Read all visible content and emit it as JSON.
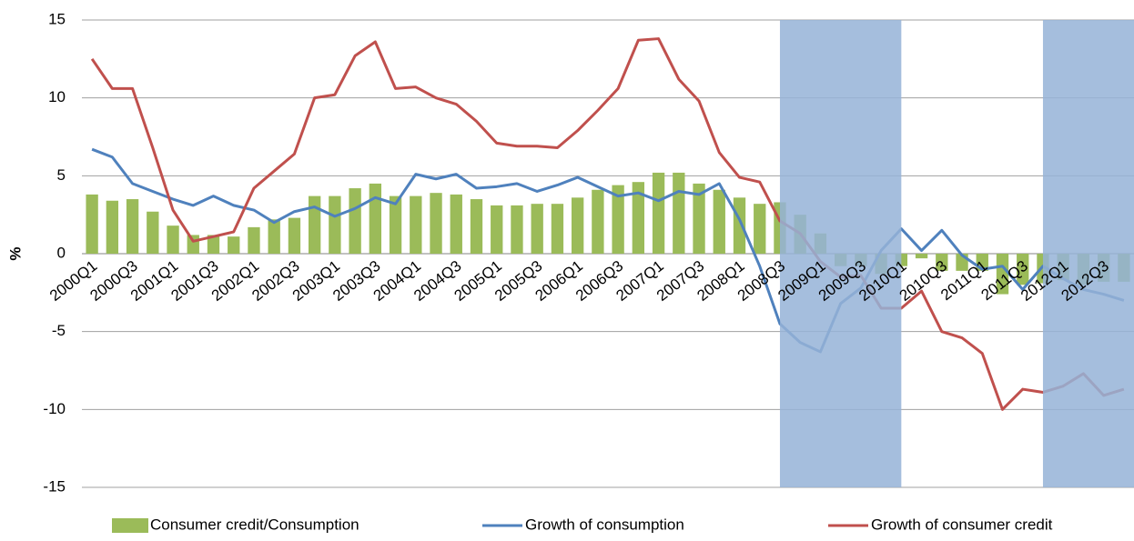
{
  "chart_data": {
    "type": "combo",
    "y_label": "%",
    "categories": [
      "2000Q1",
      null,
      "2000Q3",
      null,
      "2001Q1",
      null,
      "2001Q3",
      null,
      "2002Q1",
      null,
      "2002Q3",
      null,
      "2003Q1",
      null,
      "2003Q3",
      null,
      "2004Q1",
      null,
      "2004Q3",
      null,
      "2005Q1",
      null,
      "2005Q3",
      null,
      "2006Q1",
      null,
      "2006Q3",
      null,
      "2007Q1",
      null,
      "2007Q3",
      null,
      "2008Q1",
      null,
      "2008Q3",
      null,
      "2009Q1",
      null,
      "2009Q3",
      null,
      "2010Q1",
      null,
      "2010Q3",
      null,
      "2011Q1",
      null,
      "2011Q3",
      null,
      "2012Q1",
      null,
      "2012Q3",
      null
    ],
    "series": [
      {
        "name": "Consumer credit/Consumption",
        "type": "bar",
        "color": "#9bbb59",
        "values": [
          3.8,
          3.4,
          3.5,
          2.7,
          1.8,
          1.2,
          1.2,
          1.1,
          1.7,
          2.2,
          2.3,
          3.7,
          3.7,
          4.2,
          4.5,
          3.7,
          3.7,
          3.9,
          3.8,
          3.5,
          3.1,
          3.1,
          3.2,
          3.2,
          3.6,
          4.1,
          4.4,
          4.6,
          5.2,
          5.2,
          4.5,
          4.1,
          3.6,
          3.2,
          3.3,
          2.5,
          1.3,
          -0.8,
          -0.8,
          -1.3,
          -0.8,
          -0.3,
          -1.1,
          -1.1,
          -1.1,
          -2.6,
          -2.0,
          -1.9,
          -1.7,
          -2.0,
          -1.8,
          -1.8
        ]
      },
      {
        "name": "Growth of consumption",
        "type": "line",
        "color": "#4f81bd",
        "values": [
          6.7,
          6.2,
          4.5,
          4.0,
          3.5,
          3.1,
          3.7,
          3.1,
          2.8,
          2.0,
          2.7,
          3.0,
          2.4,
          2.9,
          3.6,
          3.2,
          5.1,
          4.8,
          5.1,
          4.2,
          4.3,
          4.5,
          4.0,
          4.4,
          4.9,
          4.3,
          3.7,
          3.9,
          3.4,
          4.0,
          3.8,
          4.5,
          2.2,
          -0.8,
          -4.5,
          -5.7,
          -6.3,
          -3.2,
          -2.2,
          0.2,
          1.6,
          0.2,
          1.5,
          -0.1,
          -1.0,
          -0.8,
          -2.3,
          -0.8,
          -1.6,
          -2.3,
          -2.6,
          -3.0
        ]
      },
      {
        "name": "Growth of consumer credit",
        "type": "line",
        "color": "#c0504d",
        "values": [
          12.5,
          10.6,
          10.6,
          6.8,
          2.8,
          0.8,
          1.1,
          1.4,
          4.2,
          5.3,
          6.4,
          10.0,
          10.2,
          12.7,
          13.6,
          10.6,
          10.7,
          10.0,
          9.6,
          8.5,
          7.1,
          6.9,
          6.9,
          6.8,
          7.9,
          9.2,
          10.6,
          13.7,
          13.8,
          11.2,
          9.8,
          6.5,
          4.9,
          4.6,
          2.1,
          1.3,
          -0.5,
          -1.5,
          -1.4,
          -3.5,
          -3.5,
          -2.4,
          -5.0,
          -5.4,
          -6.4,
          -10.0,
          -8.7,
          -8.9,
          -8.5,
          -7.7,
          -9.1,
          -8.7
        ]
      }
    ],
    "shaded": [
      [
        34,
        40
      ],
      [
        47,
        51
      ]
    ],
    "shade_color": "#95b3d7",
    "ylim": [
      -15,
      15
    ],
    "yticks": [
      -15,
      -10,
      -5,
      0,
      5,
      10,
      15
    ],
    "grid": true
  }
}
